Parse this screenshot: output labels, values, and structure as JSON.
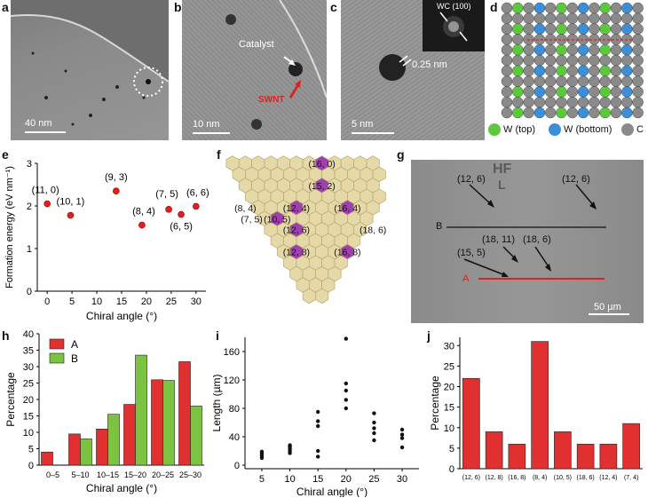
{
  "panels": {
    "a": {
      "letter": "a",
      "scale": "40 nm"
    },
    "b": {
      "letter": "b",
      "scale": "10 nm",
      "catalyst": "Catalyst",
      "swnt": "SWNT"
    },
    "c": {
      "letter": "c",
      "scale": "5 nm",
      "wc": "WC (100)",
      "spacing": "0.25 nm"
    },
    "d": {
      "letter": "d",
      "legend": [
        {
          "label": "W (top)",
          "color": "#5cc83c"
        },
        {
          "label": "W (bottom)",
          "color": "#3a8fd8"
        },
        {
          "label": "C",
          "color": "#8a8a8a"
        }
      ]
    },
    "e": {
      "letter": "e"
    },
    "f": {
      "letter": "f",
      "labels": [
        "(16, 0)",
        "(15, 2)",
        "(8, 4)",
        "(12, 4)",
        "(16, 4)",
        "(7, 5)",
        "(10, 5)",
        "(12, 6)",
        "(18, 6)",
        "(12, 8)",
        "(16, 8)"
      ]
    },
    "g": {
      "letter": "g",
      "scale": "50 µm",
      "hf": "HF",
      "l": "L",
      "a": "A",
      "b": "B",
      "labels": [
        "(12, 6)",
        "(12, 6)",
        "(18, 11)",
        "(18, 6)",
        "(15, 5)"
      ]
    },
    "h": {
      "letter": "h"
    },
    "i": {
      "letter": "i"
    },
    "j": {
      "letter": "j"
    }
  },
  "chart_data": [
    {
      "id": "e",
      "type": "scatter",
      "xlabel": "Chiral angle (°)",
      "ylabel": "Formation energy (eV nm⁻¹)",
      "xlim": [
        -2,
        32
      ],
      "ylim": [
        0,
        3
      ],
      "xticks": [
        "0",
        "5",
        "10",
        "15",
        "20",
        "25",
        "30"
      ],
      "yticks": [
        "0",
        "1",
        "2",
        "3"
      ],
      "points": [
        {
          "label": "(11, 0)",
          "x": 0,
          "y": 2.05
        },
        {
          "label": "(10, 1)",
          "x": 4.7,
          "y": 1.78
        },
        {
          "label": "(9, 3)",
          "x": 13.9,
          "y": 2.35
        },
        {
          "label": "(8, 4)",
          "x": 19.1,
          "y": 1.55
        },
        {
          "label": "(7, 5)",
          "x": 24.5,
          "y": 1.92
        },
        {
          "label": "(6, 5)",
          "x": 27,
          "y": 1.8
        },
        {
          "label": "(6, 6)",
          "x": 30,
          "y": 1.99
        }
      ]
    },
    {
      "id": "h",
      "type": "bar",
      "xlabel": "Chiral angle (°)",
      "ylabel": "Percentage",
      "ylim": [
        0,
        40
      ],
      "yticks": [
        "0",
        "5",
        "10",
        "15",
        "20",
        "25",
        "30",
        "35",
        "40"
      ],
      "categories": [
        "0–5",
        "5–10",
        "10–15",
        "15–20",
        "20–25",
        "25–30"
      ],
      "series": [
        {
          "name": "A",
          "color": "#e03030",
          "values": [
            4,
            9.5,
            11,
            18.5,
            26,
            31.5
          ]
        },
        {
          "name": "B",
          "color": "#7cc342",
          "values": [
            0,
            8,
            15.5,
            33.5,
            25.8,
            18
          ]
        }
      ]
    },
    {
      "id": "i",
      "type": "scatter",
      "xlabel": "Chiral angle (°)",
      "ylabel": "Length (µm)",
      "xlim": [
        2,
        33
      ],
      "ylim": [
        -5,
        180
      ],
      "xticks": [
        "5",
        "10",
        "15",
        "20",
        "25",
        "30"
      ],
      "yticks": [
        "0",
        "40",
        "80",
        "120",
        "160"
      ],
      "points": [
        {
          "x": 5,
          "y": 10
        },
        {
          "x": 5,
          "y": 13
        },
        {
          "x": 5,
          "y": 16
        },
        {
          "x": 5,
          "y": 19
        },
        {
          "x": 10,
          "y": 17
        },
        {
          "x": 10,
          "y": 20
        },
        {
          "x": 10,
          "y": 23
        },
        {
          "x": 10,
          "y": 26
        },
        {
          "x": 10,
          "y": 28
        },
        {
          "x": 15,
          "y": 12
        },
        {
          "x": 15,
          "y": 20
        },
        {
          "x": 15,
          "y": 55
        },
        {
          "x": 15,
          "y": 62
        },
        {
          "x": 15,
          "y": 75
        },
        {
          "x": 20,
          "y": 80
        },
        {
          "x": 20,
          "y": 92
        },
        {
          "x": 20,
          "y": 105
        },
        {
          "x": 20,
          "y": 115
        },
        {
          "x": 20,
          "y": 178
        },
        {
          "x": 25,
          "y": 35
        },
        {
          "x": 25,
          "y": 45
        },
        {
          "x": 25,
          "y": 52
        },
        {
          "x": 25,
          "y": 60
        },
        {
          "x": 25,
          "y": 73
        },
        {
          "x": 30,
          "y": 25
        },
        {
          "x": 30,
          "y": 38
        },
        {
          "x": 30,
          "y": 43
        },
        {
          "x": 30,
          "y": 50
        }
      ]
    },
    {
      "id": "j",
      "type": "bar",
      "ylabel": "Percentage",
      "ylim": [
        0,
        32
      ],
      "yticks": [
        "0",
        "5",
        "10",
        "15",
        "20",
        "25",
        "30"
      ],
      "categories": [
        "(12, 6)",
        "(12, 8)",
        "(16, 8)",
        "(8, 4)",
        "(10, 5)",
        "(18, 6)",
        "(12, 4)",
        "(7, 4)"
      ],
      "values": [
        22,
        9,
        6,
        31,
        9,
        6,
        6,
        11
      ],
      "color": "#e03030"
    }
  ]
}
